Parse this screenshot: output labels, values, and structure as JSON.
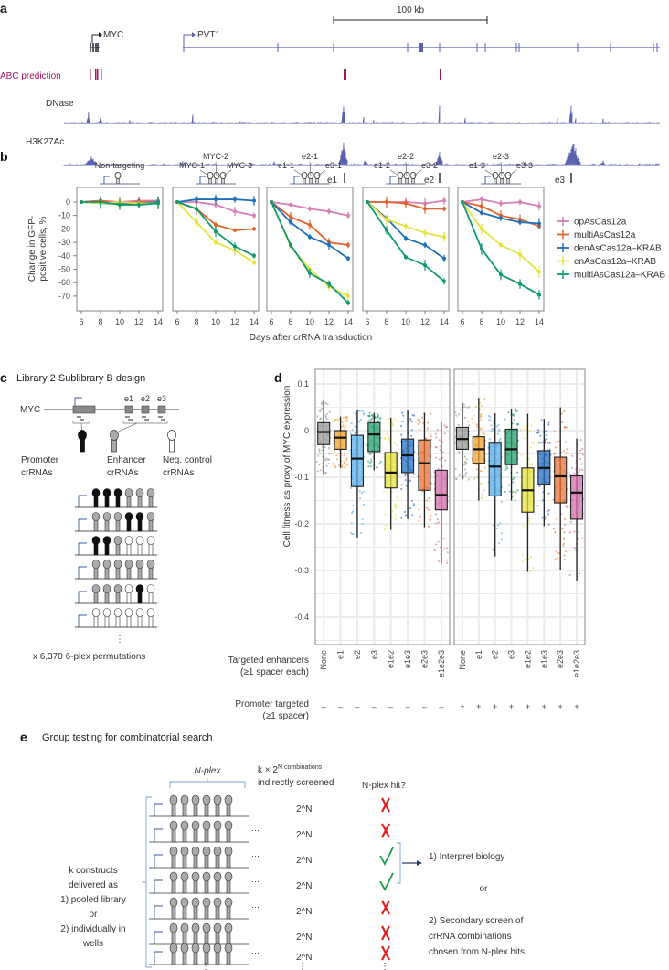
{
  "panel_a": {
    "label": "a",
    "scale_bar": "100 kb",
    "genes": [
      "MYC",
      "PVT1"
    ],
    "tracks": [
      "ABC prediction",
      "DNase",
      "H3K27Ac"
    ],
    "enhancers": [
      "e1",
      "e2",
      "e3"
    ],
    "colors": {
      "track": "#5a62b0",
      "abc": "#a0175e"
    }
  },
  "panel_b": {
    "label": "b",
    "headers": [
      {
        "title": "Non-targeting",
        "labels": []
      },
      {
        "title": "",
        "labels": [
          "MYC-1",
          "MYC-2",
          "MYC-3"
        ]
      },
      {
        "title": "",
        "labels": [
          "e1-1",
          "e2-1",
          "e3-1"
        ]
      },
      {
        "title": "",
        "labels": [
          "e1-2",
          "e2-2",
          "e3-2"
        ]
      },
      {
        "title": "",
        "labels": [
          "e1-3",
          "e2-3",
          "e3-3"
        ]
      }
    ],
    "ylabel_lines": [
      "Change in GFP-",
      "positive cells, %"
    ]
  },
  "panel_c": {
    "label": "c",
    "title": "Library 2 Sublibrary B design",
    "gene": "MYC",
    "enhancers": [
      "e1",
      "e2",
      "e3"
    ],
    "crRNA_types": [
      {
        "lines": [
          "Promoter",
          "crRNAs"
        ],
        "kind": "P"
      },
      {
        "lines": [
          "Enhancer",
          "crRNAs"
        ],
        "kind": "E"
      },
      {
        "lines": [
          "Neg. control",
          "crRNAs"
        ],
        "kind": "N"
      }
    ],
    "constructs": [
      "PPPEEE",
      "EEEPPE",
      "PPENNN",
      "EEEEEE",
      "EEENPN",
      "NNNNNN"
    ],
    "ellipsis": "⋮",
    "footer": "x 6,370 6-plex permutations"
  },
  "panel_d": {
    "label": "d",
    "row_enhancers": [
      "Targeted enhancers",
      "(≥1 spacer each)"
    ],
    "row_promoter": [
      "Promoter targeted",
      "(≥1 spacer)"
    ],
    "promoter_signs": [
      [
        "–",
        "–",
        "–",
        "–",
        "–",
        "–",
        "–",
        "–"
      ],
      [
        "+",
        "+",
        "+",
        "+",
        "+",
        "+",
        "+",
        "+"
      ]
    ]
  },
  "panel_e": {
    "label": "e",
    "title": "Group testing for combinatorial search",
    "nplex": "N-plex",
    "combos_lines": [
      "k × 2^N combinations",
      "indirectly screened"
    ],
    "hit_header": "N-plex hit?",
    "row_value": "2^N",
    "hits": [
      false,
      false,
      true,
      true,
      false,
      false,
      false
    ],
    "ellipsis": "⋮",
    "trailing": "···",
    "left_lines": [
      "k constructs",
      "delivered as",
      "1) pooled library",
      "or",
      "2) individually in",
      "wells"
    ],
    "outcome_lines": [
      "1) Interpret biology",
      "or",
      "2) Secondary screen of",
      "crRNA combinations",
      "chosen from N-plex hits"
    ],
    "colors": {
      "hit": "#1a9a4a",
      "miss": "#e02020",
      "bracket": "#7aa0d8"
    }
  },
  "chart_data": [
    {
      "type": "line",
      "title": "",
      "xlabel": "Days after crRNA transduction",
      "ylabel": "Change in GFP-positive cells, %",
      "x": [
        6,
        8,
        10,
        12,
        14
      ],
      "xticks": [
        "6",
        "8",
        "10",
        "12",
        "14"
      ],
      "yticks": [
        "0",
        "-10",
        "-20",
        "-30",
        "-40",
        "-50",
        "-60",
        "-70"
      ],
      "ytick_values": [
        0,
        -10,
        -20,
        -30,
        -40,
        -50,
        -60,
        -70
      ],
      "ylim": [
        -77,
        10
      ],
      "legend_position": "right",
      "series_names": [
        "opAsCas12a",
        "multiAsCas12a",
        "denAsCas12a–KRAB",
        "enAsCas12a–KRAB",
        "multiAsCas12a–KRAB"
      ],
      "colors": [
        "#d67fb8",
        "#e2622c",
        "#1f70b8",
        "#e6e23c",
        "#0f9a6e"
      ],
      "panels": [
        {
          "name": "Non-targeting",
          "series": [
            [
              0,
              1,
              0,
              1,
              1
            ],
            [
              0,
              1,
              -1,
              0,
              0
            ],
            [
              0,
              -1,
              -1,
              -1,
              0
            ],
            [
              0,
              -1,
              0,
              -1,
              -1
            ],
            [
              0,
              0,
              -2,
              -2,
              -1
            ]
          ]
        },
        {
          "name": "MYC",
          "series": [
            [
              0,
              0,
              -2,
              -7,
              -10
            ],
            [
              0,
              -5,
              -17,
              -21,
              -20
            ],
            [
              0,
              2,
              2,
              2,
              1
            ],
            [
              0,
              -15,
              -30,
              -36,
              -45
            ],
            [
              0,
              -5,
              -22,
              -33,
              -40
            ]
          ]
        },
        {
          "name": "e*-1",
          "series": [
            [
              0,
              -2,
              -5,
              -7,
              -10
            ],
            [
              0,
              -11,
              -17,
              -30,
              -32
            ],
            [
              0,
              -15,
              -26,
              -32,
              -42
            ],
            [
              0,
              -33,
              -50,
              -63,
              -70
            ],
            [
              0,
              -32,
              -53,
              -61,
              -75
            ]
          ]
        },
        {
          "name": "e*-2",
          "series": [
            [
              0,
              0,
              0,
              -1,
              1
            ],
            [
              0,
              0,
              -1,
              -5,
              -5
            ],
            [
              0,
              -12,
              -27,
              -32,
              -42
            ],
            [
              0,
              -13,
              -18,
              -23,
              -26
            ],
            [
              0,
              -21,
              -41,
              -47,
              -59
            ]
          ]
        },
        {
          "name": "e*-3",
          "series": [
            [
              0,
              2,
              -1,
              0,
              -3
            ],
            [
              0,
              -3,
              -10,
              -13,
              -18
            ],
            [
              0,
              -8,
              -12,
              -15,
              -16
            ],
            [
              0,
              -20,
              -32,
              -39,
              -52
            ],
            [
              0,
              -35,
              -54,
              -61,
              -69
            ]
          ]
        }
      ]
    },
    {
      "type": "box",
      "ylabel": "Cell fitness as proxy of MYC expression",
      "yticks": [
        "0.1",
        "0",
        "-0.1",
        "-0.2",
        "-0.3",
        "-0.4"
      ],
      "ytick_values": [
        0.1,
        0,
        -0.1,
        -0.2,
        -0.3,
        -0.4
      ],
      "ylim": [
        -0.46,
        0.13
      ],
      "categories": [
        "None",
        "e1",
        "e2",
        "e3",
        "e1e2",
        "e1e3",
        "e2e3",
        "e1e2e3"
      ],
      "colors": [
        "#9a9a9a",
        "#f0a436",
        "#5aaee8",
        "#2aa070",
        "#e6e23c",
        "#2a70c0",
        "#e8743a",
        "#d070a8"
      ],
      "facets": [
        {
          "promoter_targeted": false,
          "boxes": [
            {
              "low": -0.095,
              "q1": -0.03,
              "median": -0.003,
              "q3": 0.017,
              "high": 0.067
            },
            {
              "low": -0.08,
              "q1": -0.04,
              "median": -0.015,
              "q3": 0.0,
              "high": 0.03
            },
            {
              "low": -0.23,
              "q1": -0.12,
              "median": -0.06,
              "q3": -0.01,
              "high": 0.045
            },
            {
              "low": -0.085,
              "q1": -0.045,
              "median": -0.008,
              "q3": 0.017,
              "high": 0.038
            },
            {
              "low": -0.213,
              "q1": -0.123,
              "median": -0.09,
              "q3": -0.047,
              "high": 0.028
            },
            {
              "low": -0.19,
              "q1": -0.09,
              "median": -0.053,
              "q3": -0.018,
              "high": 0.044
            },
            {
              "low": -0.207,
              "q1": -0.128,
              "median": -0.07,
              "q3": -0.02,
              "high": 0.038
            },
            {
              "low": -0.285,
              "q1": -0.17,
              "median": -0.138,
              "q3": -0.085,
              "high": 0.018
            }
          ]
        },
        {
          "promoter_targeted": true,
          "boxes": [
            {
              "low": -0.105,
              "q1": -0.04,
              "median": -0.018,
              "q3": 0.007,
              "high": 0.06
            },
            {
              "low": -0.15,
              "q1": -0.07,
              "median": -0.04,
              "q3": -0.013,
              "high": 0.07
            },
            {
              "low": -0.27,
              "q1": -0.14,
              "median": -0.077,
              "q3": -0.027,
              "high": 0.037
            },
            {
              "low": -0.15,
              "q1": -0.073,
              "median": -0.04,
              "q3": 0.003,
              "high": 0.047
            },
            {
              "low": -0.303,
              "q1": -0.175,
              "median": -0.128,
              "q3": -0.08,
              "high": 0.036
            },
            {
              "low": -0.205,
              "q1": -0.115,
              "median": -0.08,
              "q3": -0.043,
              "high": 0.025
            },
            {
              "low": -0.298,
              "q1": -0.155,
              "median": -0.098,
              "q3": -0.057,
              "high": 0.05
            },
            {
              "low": -0.323,
              "q1": -0.19,
              "median": -0.133,
              "q3": -0.097,
              "high": -0.017
            }
          ]
        }
      ]
    }
  ]
}
